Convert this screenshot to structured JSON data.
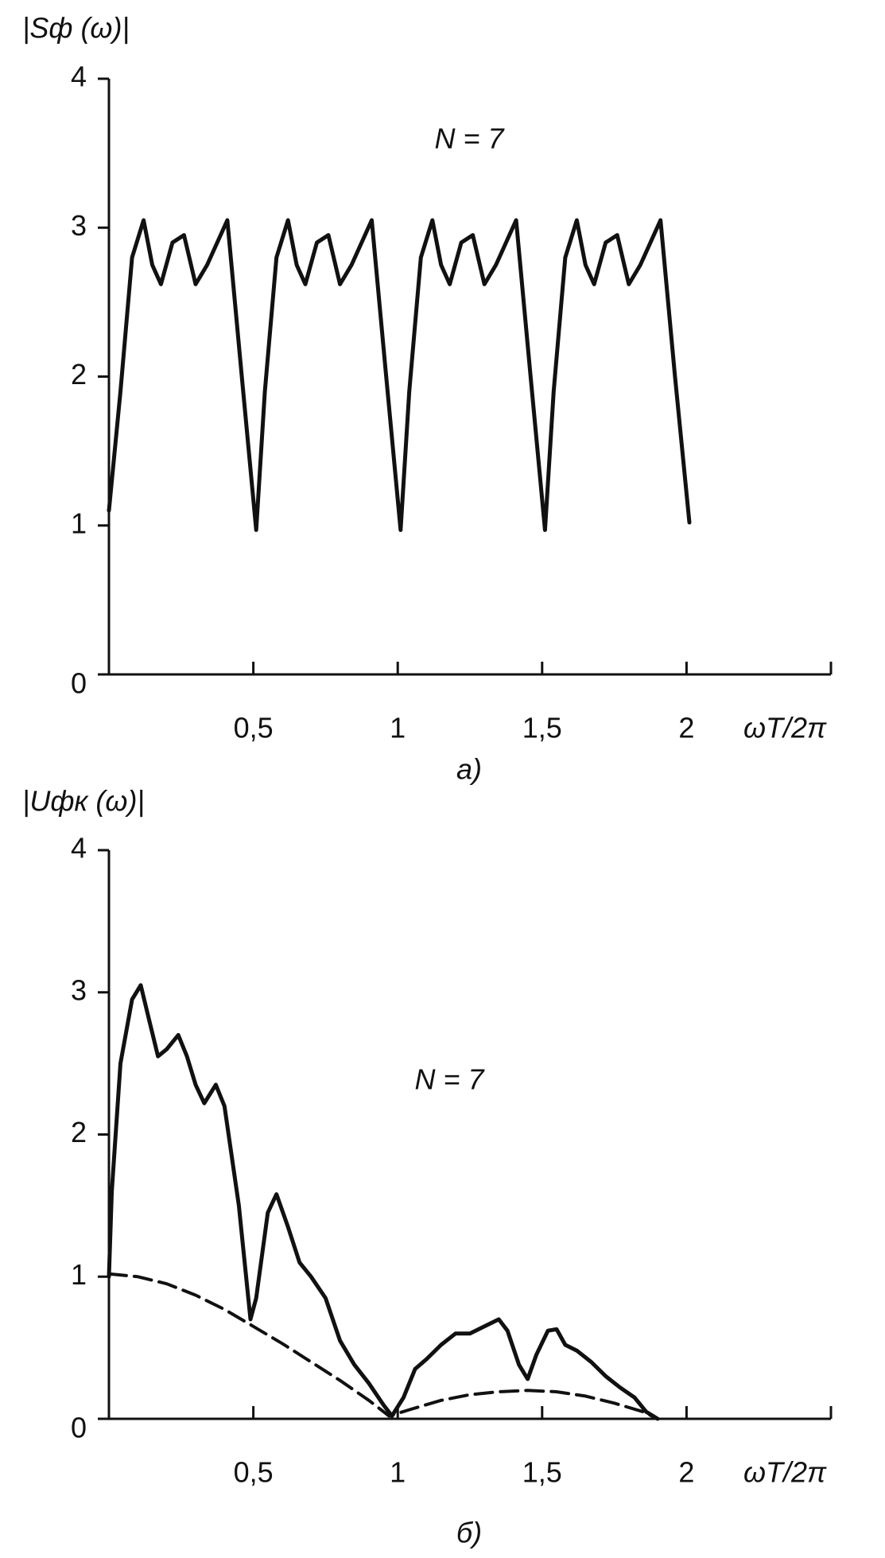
{
  "chart_data": [
    {
      "type": "line",
      "y_label": "|Sф (ω)|",
      "x_label": "ωT/2π",
      "annotation": "N = 7",
      "caption": "а)",
      "xlim": [
        0,
        2.5
      ],
      "ylim": [
        0,
        4
      ],
      "yticks": [
        0,
        1,
        2,
        3,
        4
      ],
      "xticks": [
        {
          "value": 0.5,
          "label": "0,5"
        },
        1,
        {
          "value": 1.5,
          "label": "1,5"
        },
        2
      ],
      "grid": false,
      "series": [
        {
          "color": "#111",
          "style": "solid",
          "x": [
            0,
            0.04,
            0.08,
            0.12,
            0.15,
            0.18,
            0.22,
            0.26,
            0.3,
            0.34,
            0.41,
            0.46,
            0.51,
            0.54,
            0.58,
            0.62,
            0.65,
            0.68,
            0.72,
            0.76,
            0.8,
            0.84,
            0.91,
            0.96,
            1.01,
            1.04,
            1.08,
            1.12,
            1.15,
            1.18,
            1.22,
            1.26,
            1.3,
            1.34,
            1.41,
            1.46,
            1.51,
            1.54,
            1.58,
            1.62,
            1.65,
            1.68,
            1.72,
            1.76,
            1.8,
            1.84,
            1.91,
            1.96,
            2.01
          ],
          "values": [
            1.1,
            1.9,
            2.8,
            3.05,
            2.75,
            2.62,
            2.9,
            2.95,
            2.62,
            2.75,
            3.05,
            2.0,
            0.97,
            1.9,
            2.8,
            3.05,
            2.75,
            2.62,
            2.9,
            2.95,
            2.62,
            2.75,
            3.05,
            2.0,
            0.97,
            1.9,
            2.8,
            3.05,
            2.75,
            2.62,
            2.9,
            2.95,
            2.62,
            2.75,
            3.05,
            2.0,
            0.97,
            1.9,
            2.8,
            3.05,
            2.75,
            2.62,
            2.9,
            2.95,
            2.62,
            2.75,
            3.05,
            2.0,
            1.02
          ]
        }
      ]
    },
    {
      "type": "line",
      "y_label": "|Uфк (ω)|",
      "x_label": "ωT/2π",
      "annotation": "N = 7",
      "caption": "б)",
      "xlim": [
        0,
        2.5
      ],
      "ylim": [
        0,
        4
      ],
      "yticks": [
        0,
        1,
        2,
        3,
        4
      ],
      "xticks": [
        {
          "value": 0.5,
          "label": "0,5"
        },
        1,
        {
          "value": 1.5,
          "label": "1,5"
        },
        2
      ],
      "grid": false,
      "series": [
        {
          "color": "#111",
          "style": "solid",
          "x": [
            0,
            0.01,
            0.04,
            0.08,
            0.11,
            0.14,
            0.17,
            0.2,
            0.24,
            0.27,
            0.3,
            0.33,
            0.37,
            0.4,
            0.45,
            0.49,
            0.51,
            0.55,
            0.58,
            0.62,
            0.66,
            0.7,
            0.75,
            0.8,
            0.85,
            0.9,
            0.95,
            0.98,
            1.02,
            1.06,
            1.1,
            1.15,
            1.2,
            1.25,
            1.3,
            1.35,
            1.38,
            1.42,
            1.45,
            1.48,
            1.52,
            1.55,
            1.58,
            1.62,
            1.67,
            1.72,
            1.77,
            1.82,
            1.86,
            1.9
          ],
          "values": [
            1.0,
            1.6,
            2.5,
            2.95,
            3.05,
            2.8,
            2.55,
            2.6,
            2.7,
            2.55,
            2.35,
            2.22,
            2.35,
            2.2,
            1.5,
            0.7,
            0.85,
            1.45,
            1.58,
            1.35,
            1.1,
            1.0,
            0.85,
            0.55,
            0.38,
            0.25,
            0.1,
            0.02,
            0.15,
            0.35,
            0.42,
            0.52,
            0.6,
            0.6,
            0.65,
            0.7,
            0.62,
            0.38,
            0.28,
            0.45,
            0.62,
            0.63,
            0.52,
            0.48,
            0.4,
            0.3,
            0.22,
            0.15,
            0.05,
            0
          ]
        },
        {
          "color": "#111",
          "style": "dashed",
          "x": [
            0,
            0.1,
            0.2,
            0.3,
            0.4,
            0.5,
            0.6,
            0.7,
            0.8,
            0.9,
            0.97,
            1.05,
            1.15,
            1.25,
            1.35,
            1.45,
            1.55,
            1.65,
            1.75,
            1.85,
            1.9
          ],
          "values": [
            1.02,
            1.0,
            0.95,
            0.87,
            0.77,
            0.65,
            0.53,
            0.4,
            0.27,
            0.13,
            0.02,
            0.07,
            0.13,
            0.17,
            0.19,
            0.2,
            0.19,
            0.16,
            0.11,
            0.05,
            0
          ]
        }
      ]
    }
  ]
}
